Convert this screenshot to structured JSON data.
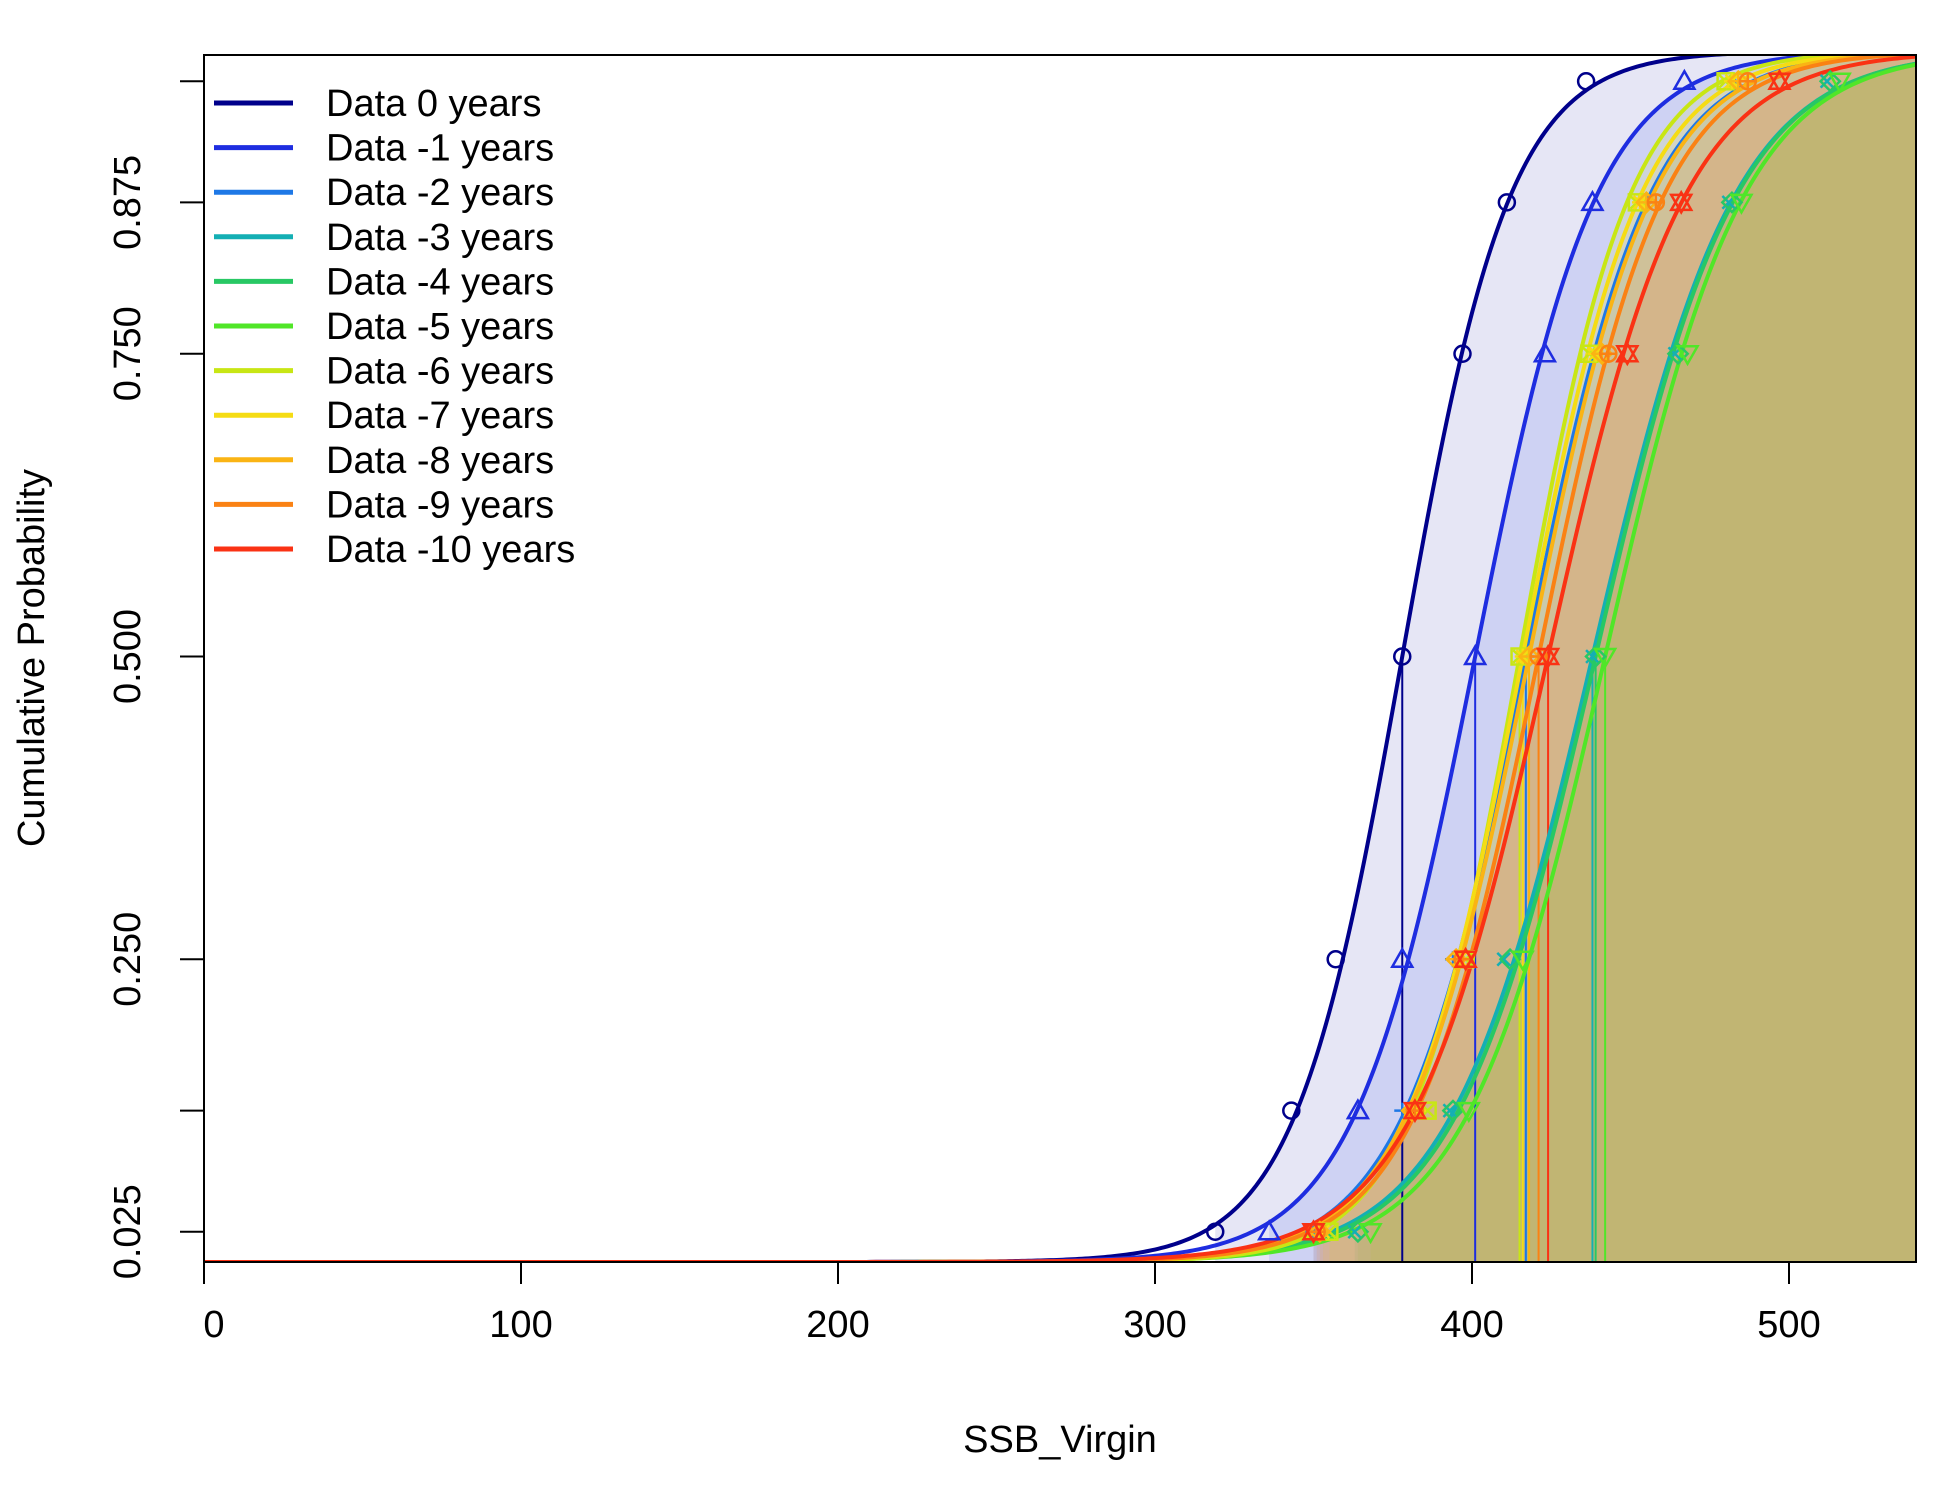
{
  "chart_data": {
    "type": "line",
    "title": "",
    "xlabel": "SSB_Virgin",
    "ylabel": "Cumulative Probability",
    "xlim": [
      0,
      540
    ],
    "ylim": [
      0,
      1
    ],
    "x_ticks": [
      0,
      100,
      200,
      300,
      400,
      500
    ],
    "y_ticks": [
      0.025,
      0.25,
      0.5,
      0.75,
      0.875
    ],
    "y_tick_labels": [
      "0.025",
      "0.250",
      "0.500",
      "0.750",
      "0.875"
    ],
    "y_minor_ticks": [
      0.125,
      0.975
    ],
    "legend_position": "top-left",
    "grid": false,
    "series": [
      {
        "name": "Data 0 years",
        "color": "#00008B",
        "fill": "#3F3FB0",
        "marker": "circle",
        "quantiles": {
          "0.025": 319,
          "0.125": 343,
          "0.25": 357,
          "0.5": 378,
          "0.75": 397,
          "0.875": 411,
          "0.975": 436
        }
      },
      {
        "name": "Data -1 years",
        "color": "#1E2DE0",
        "fill": "#3050E6",
        "marker": "triangle-up",
        "quantiles": {
          "0.025": 336,
          "0.125": 364,
          "0.25": 378,
          "0.5": 401,
          "0.75": 423,
          "0.875": 438,
          "0.975": 467
        }
      },
      {
        "name": "Data -2 years",
        "color": "#1E78E6",
        "fill": "#2F8AE8",
        "marker": "plus",
        "quantiles": {
          "0.025": 350,
          "0.125": 378,
          "0.25": 394,
          "0.5": 417,
          "0.75": 440,
          "0.875": 455,
          "0.975": 483
        }
      },
      {
        "name": "Data -3 years",
        "color": "#14AFB4",
        "fill": "#28B8B8",
        "marker": "x",
        "quantiles": {
          "0.025": 363,
          "0.125": 393,
          "0.25": 410,
          "0.5": 438,
          "0.75": 464,
          "0.875": 481,
          "0.975": 512
        }
      },
      {
        "name": "Data -4 years",
        "color": "#28C864",
        "fill": "#3CC86E",
        "marker": "diamond",
        "quantiles": {
          "0.025": 364,
          "0.125": 394,
          "0.25": 412,
          "0.5": 439,
          "0.75": 465,
          "0.875": 482,
          "0.975": 513
        }
      },
      {
        "name": "Data -5 years",
        "color": "#50E628",
        "fill": "#6EE03C",
        "marker": "triangle-down",
        "quantiles": {
          "0.025": 368,
          "0.125": 399,
          "0.25": 416,
          "0.5": 442,
          "0.75": 468,
          "0.875": 485,
          "0.975": 516
        }
      },
      {
        "name": "Data -6 years",
        "color": "#C8E614",
        "fill": "#D2E628",
        "marker": "square-x",
        "quantiles": {
          "0.025": 355,
          "0.125": 386,
          "0.25": 398,
          "0.5": 415,
          "0.75": 437,
          "0.875": 452,
          "0.975": 480
        }
      },
      {
        "name": "Data -7 years",
        "color": "#F5DC14",
        "fill": "#F5DC28",
        "marker": "star",
        "quantiles": {
          "0.025": 353,
          "0.125": 383,
          "0.25": 396,
          "0.5": 416,
          "0.75": 439,
          "0.875": 453,
          "0.975": 482
        }
      },
      {
        "name": "Data -8 years",
        "color": "#FAB414",
        "fill": "#FAB428",
        "marker": "diamond-plus",
        "quantiles": {
          "0.025": 352,
          "0.125": 381,
          "0.25": 395,
          "0.5": 418,
          "0.75": 441,
          "0.875": 455,
          "0.975": 484
        }
      },
      {
        "name": "Data -9 years",
        "color": "#FA8214",
        "fill": "#FA8C28",
        "marker": "circle-plus",
        "quantiles": {
          "0.025": 351,
          "0.125": 382,
          "0.25": 397,
          "0.5": 421,
          "0.75": 443,
          "0.875": 458,
          "0.975": 487
        }
      },
      {
        "name": "Data -10 years",
        "color": "#FA3214",
        "fill": "#F56428",
        "marker": "star-of-david",
        "quantiles": {
          "0.025": 350,
          "0.125": 382,
          "0.25": 398,
          "0.5": 424,
          "0.75": 449,
          "0.875": 466,
          "0.975": 497
        }
      }
    ]
  }
}
